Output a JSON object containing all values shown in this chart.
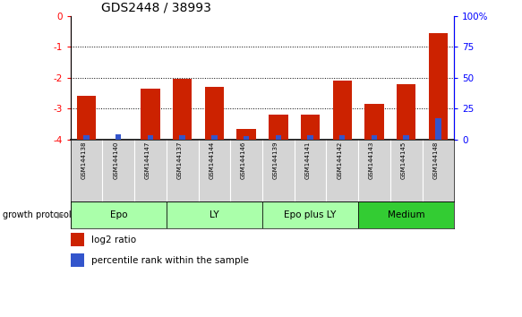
{
  "title": "GDS2448 / 38993",
  "samples": [
    "GSM144138",
    "GSM144140",
    "GSM144147",
    "GSM144137",
    "GSM144144",
    "GSM144146",
    "GSM144139",
    "GSM144141",
    "GSM144142",
    "GSM144143",
    "GSM144145",
    "GSM144148"
  ],
  "log2_ratio": [
    -2.6,
    -4.0,
    -2.35,
    -2.05,
    -2.3,
    -3.65,
    -3.2,
    -3.2,
    -2.1,
    -2.85,
    -2.2,
    -0.55
  ],
  "percentile_rank": [
    3.5,
    4.0,
    3.5,
    3.5,
    3.5,
    2.5,
    3.5,
    3.5,
    3.5,
    3.5,
    3.5,
    17.0
  ],
  "groups": [
    {
      "label": "Epo",
      "start": 0,
      "end": 3
    },
    {
      "label": "LY",
      "start": 3,
      "end": 6
    },
    {
      "label": "Epo plus LY",
      "start": 6,
      "end": 9
    },
    {
      "label": "Medium",
      "start": 9,
      "end": 12
    }
  ],
  "group_colors": [
    "#aaffaa",
    "#aaffaa",
    "#aaffaa",
    "#33cc33"
  ],
  "ylim_left": [
    -4.0,
    0.0
  ],
  "ylim_right": [
    0,
    100
  ],
  "yticks_left": [
    -4,
    -3,
    -2,
    -1,
    0
  ],
  "yticks_right": [
    0,
    25,
    50,
    75,
    100
  ],
  "bar_color_red": "#cc2200",
  "bar_color_blue": "#3355cc",
  "sample_box_color": "#d4d4d4",
  "bg_color": "#ffffff"
}
